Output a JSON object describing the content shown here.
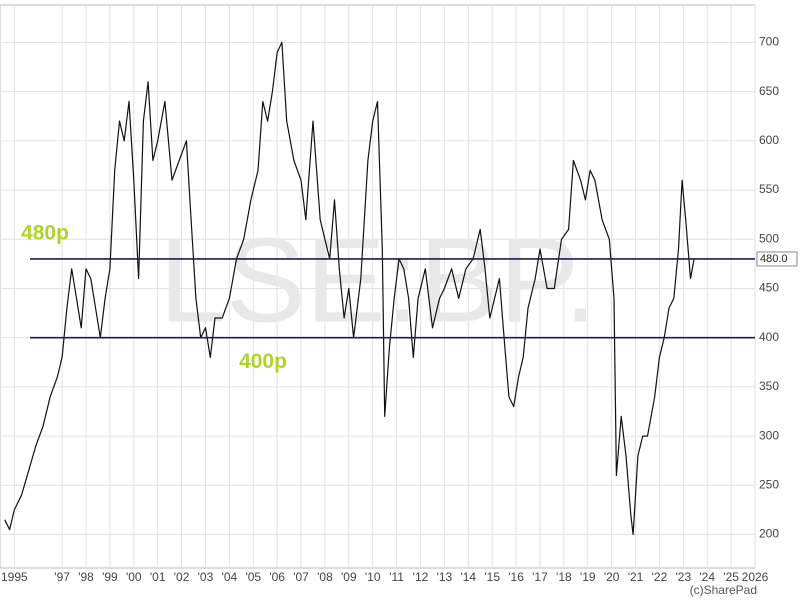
{
  "chart_data": {
    "type": "line",
    "watermark": "LSE:BP.",
    "credit": "(c)SharePad",
    "xlim": [
      1994.4,
      2026
    ],
    "ylim": [
      166,
      738
    ],
    "yticks": [
      200,
      250,
      300,
      350,
      400,
      450,
      500,
      550,
      600,
      650,
      700
    ],
    "xticks": [
      {
        "value": 1995,
        "label": "1995"
      },
      {
        "value": 1997,
        "label": "'97"
      },
      {
        "value": 1998,
        "label": "'98"
      },
      {
        "value": 1999,
        "label": "'99"
      },
      {
        "value": 2000,
        "label": "'00"
      },
      {
        "value": 2001,
        "label": "'01"
      },
      {
        "value": 2002,
        "label": "'02"
      },
      {
        "value": 2003,
        "label": "'03"
      },
      {
        "value": 2004,
        "label": "'04"
      },
      {
        "value": 2005,
        "label": "'05"
      },
      {
        "value": 2006,
        "label": "'06"
      },
      {
        "value": 2007,
        "label": "'07"
      },
      {
        "value": 2008,
        "label": "'08"
      },
      {
        "value": 2009,
        "label": "'09"
      },
      {
        "value": 2010,
        "label": "'10"
      },
      {
        "value": 2011,
        "label": "'11"
      },
      {
        "value": 2012,
        "label": "'12"
      },
      {
        "value": 2013,
        "label": "'13"
      },
      {
        "value": 2014,
        "label": "'14"
      },
      {
        "value": 2015,
        "label": "'15"
      },
      {
        "value": 2016,
        "label": "'16"
      },
      {
        "value": 2017,
        "label": "'17"
      },
      {
        "value": 2018,
        "label": "'18"
      },
      {
        "value": 2019,
        "label": "'19"
      },
      {
        "value": 2020,
        "label": "'20"
      },
      {
        "value": 2021,
        "label": "'21"
      },
      {
        "value": 2022,
        "label": "'22"
      },
      {
        "value": 2023,
        "label": "'23"
      },
      {
        "value": 2024,
        "label": "'24"
      },
      {
        "value": 2025,
        "label": "'25"
      },
      {
        "value": 2026,
        "label": "2026"
      }
    ],
    "grid": true,
    "reference_lines": [
      {
        "value": 480,
        "label": "480p",
        "color": "#1c1c50"
      },
      {
        "value": 400,
        "label": "400p",
        "color": "#1c1c50"
      }
    ],
    "annotation_color": "#aed42a",
    "last_price": {
      "value": 480,
      "label": "480.0"
    },
    "series": [
      {
        "name": "LSE:BP.",
        "color": "#111111",
        "x": [
          1994.6,
          1994.8,
          1995.0,
          1995.3,
          1995.6,
          1995.9,
          1996.2,
          1996.5,
          1996.8,
          1997.0,
          1997.2,
          1997.4,
          1997.6,
          1997.8,
          1998.0,
          1998.2,
          1998.4,
          1998.6,
          1998.8,
          1999.0,
          1999.2,
          1999.4,
          1999.6,
          1999.8,
          2000.0,
          2000.2,
          2000.4,
          2000.6,
          2000.8,
          2001.0,
          2001.3,
          2001.6,
          2001.9,
          2002.2,
          2002.4,
          2002.6,
          2002.8,
          2003.0,
          2003.2,
          2003.4,
          2003.7,
          2004.0,
          2004.3,
          2004.6,
          2004.9,
          2005.2,
          2005.4,
          2005.6,
          2005.8,
          2006.0,
          2006.2,
          2006.4,
          2006.7,
          2007.0,
          2007.2,
          2007.5,
          2007.8,
          2008.0,
          2008.2,
          2008.4,
          2008.6,
          2008.8,
          2009.0,
          2009.2,
          2009.5,
          2009.8,
          2010.0,
          2010.2,
          2010.4,
          2010.5,
          2010.7,
          2010.9,
          2011.1,
          2011.3,
          2011.5,
          2011.7,
          2011.9,
          2012.2,
          2012.5,
          2012.8,
          2013.0,
          2013.3,
          2013.6,
          2013.9,
          2014.2,
          2014.5,
          2014.7,
          2014.9,
          2015.1,
          2015.3,
          2015.5,
          2015.7,
          2015.9,
          2016.1,
          2016.3,
          2016.5,
          2016.8,
          2017.0,
          2017.3,
          2017.6,
          2017.9,
          2018.2,
          2018.4,
          2018.7,
          2018.9,
          2019.1,
          2019.3,
          2019.6,
          2019.9,
          2020.1,
          2020.2,
          2020.4,
          2020.6,
          2020.8,
          2020.9,
          2021.1,
          2021.3,
          2021.5,
          2021.8,
          2022.0,
          2022.2,
          2022.4,
          2022.6,
          2022.8,
          2022.95,
          2023.1,
          2023.3,
          2023.45
        ],
        "values": [
          215,
          205,
          225,
          240,
          265,
          290,
          310,
          340,
          360,
          380,
          430,
          470,
          440,
          410,
          470,
          460,
          430,
          400,
          440,
          470,
          570,
          620,
          600,
          640,
          560,
          460,
          620,
          660,
          580,
          600,
          640,
          560,
          580,
          600,
          520,
          440,
          400,
          410,
          380,
          420,
          420,
          440,
          480,
          500,
          540,
          570,
          640,
          620,
          650,
          690,
          700,
          620,
          580,
          560,
          520,
          620,
          520,
          500,
          480,
          540,
          470,
          420,
          450,
          400,
          460,
          580,
          620,
          640,
          490,
          320,
          390,
          440,
          480,
          470,
          440,
          380,
          440,
          470,
          410,
          440,
          450,
          470,
          440,
          470,
          480,
          510,
          470,
          420,
          440,
          460,
          400,
          340,
          330,
          360,
          380,
          430,
          460,
          490,
          450,
          450,
          500,
          510,
          580,
          560,
          540,
          570,
          560,
          520,
          500,
          440,
          260,
          320,
          280,
          220,
          200,
          280,
          300,
          300,
          340,
          380,
          400,
          430,
          440,
          490,
          560,
          520,
          460,
          480
        ]
      }
    ]
  }
}
